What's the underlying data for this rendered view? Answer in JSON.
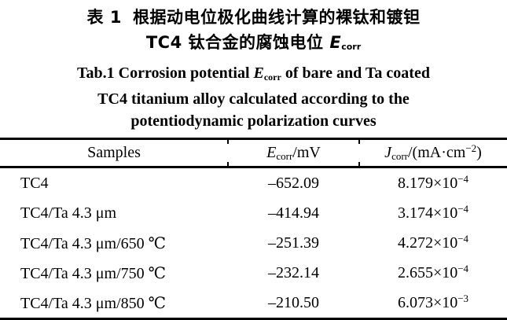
{
  "title_cn": {
    "table_no": "表 1",
    "line1_rest": "根据动电位极化曲线计算的裸钛和镀钽",
    "line2_prefix": "TC4 钛合金的腐蚀电位 ",
    "line2_symbol": "E",
    "line2_sub": "corr"
  },
  "title_en": {
    "line1_prefix": "Tab.1 Corrosion potential ",
    "line1_symbol": "E",
    "line1_sub": "corr",
    "line1_suffix": " of bare and Ta coated",
    "line2": "TC4 titanium alloy calculated according to the",
    "line3": "potentiodynamic polarization curves"
  },
  "table": {
    "header": {
      "samples": "Samples",
      "ecorr_symbol": "E",
      "ecorr_sub": "corr",
      "ecorr_rest": "/mV",
      "jcorr_symbol": "J",
      "jcorr_sub": "corr",
      "jcorr_mid": "/(mA·cm",
      "jcorr_sup": "−2",
      "jcorr_end": ")"
    },
    "rows": [
      {
        "sample": "TC4",
        "ecorr": "–652.09",
        "jcorr": {
          "base": "8.179×10",
          "exp": "−4"
        }
      },
      {
        "sample": "TC4/Ta 4.3 μm",
        "ecorr": "–414.94",
        "jcorr": {
          "base": "3.174×10",
          "exp": "−4"
        }
      },
      {
        "sample": "TC4/Ta 4.3 μm/650 ℃",
        "ecorr": "–251.39",
        "jcorr": {
          "base": "4.272×10",
          "exp": "−4"
        }
      },
      {
        "sample": "TC4/Ta 4.3 μm/750 ℃",
        "ecorr": "–232.14",
        "jcorr": {
          "base": "2.655×10",
          "exp": "−4"
        }
      },
      {
        "sample": "TC4/Ta 4.3 μm/850 ℃",
        "ecorr": "–210.50",
        "jcorr": {
          "base": "6.073×10",
          "exp": "−3"
        }
      }
    ]
  },
  "colors": {
    "background": "#ffffff",
    "text": "#000000",
    "rule": "#000000"
  }
}
